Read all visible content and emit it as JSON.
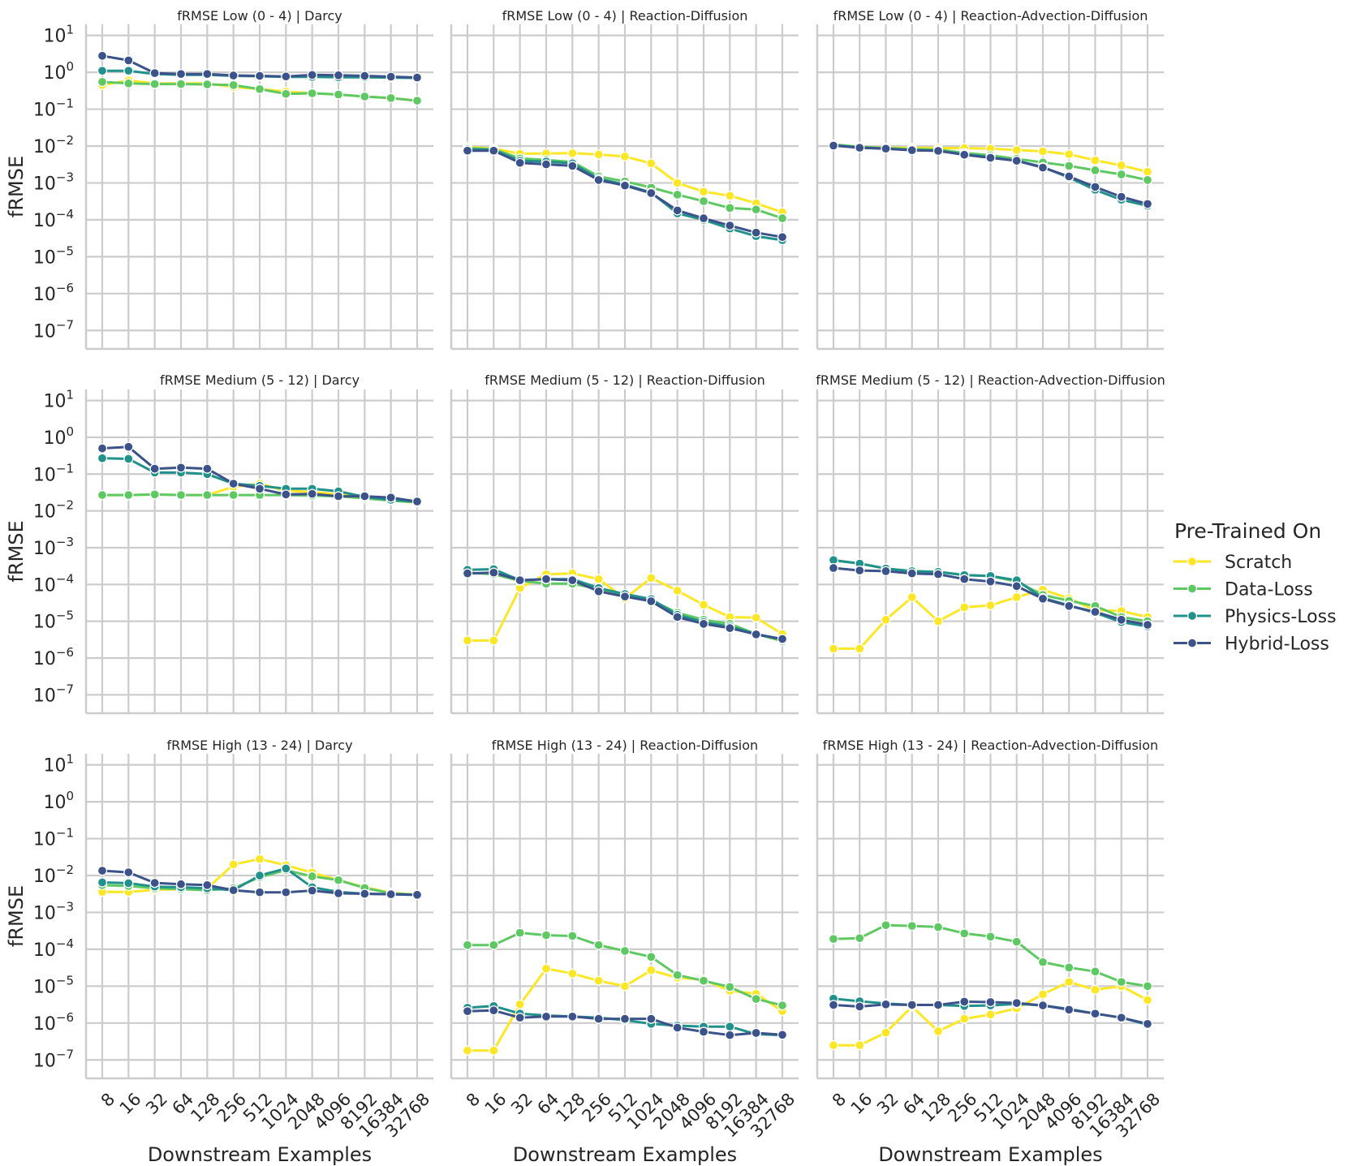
{
  "figure": {
    "legend": {
      "title": "Pre-Trained On",
      "entries": [
        "Scratch",
        "Data-Loss",
        "Physics-Loss",
        "Hybrid-Loss"
      ],
      "placement": "right-center"
    },
    "colors": {
      "Scratch": "#fde725",
      "Data-Loss": "#5ec962",
      "Physics-Loss": "#21918c",
      "Hybrid-Loss": "#3b528b"
    },
    "y_tick_labels": [
      {
        "base": "10",
        "exp": "1"
      },
      {
        "base": "10",
        "exp": "0"
      },
      {
        "base": "10",
        "exp": "−1"
      },
      {
        "base": "10",
        "exp": "−2"
      },
      {
        "base": "10",
        "exp": "−3"
      },
      {
        "base": "10",
        "exp": "−4"
      },
      {
        "base": "10",
        "exp": "−5"
      },
      {
        "base": "10",
        "exp": "−6"
      },
      {
        "base": "10",
        "exp": "−7"
      }
    ],
    "x_tick_labels": [
      "8",
      "16",
      "32",
      "64",
      "128",
      "256",
      "512",
      "1024",
      "2048",
      "4096",
      "8192",
      "16384",
      "32768"
    ],
    "xlabel": "Downstream Examples",
    "ylabel": "fRMSE"
  },
  "chart_data": [
    {
      "type": "line",
      "yscale": "log",
      "ylim": [
        3e-08,
        20
      ],
      "title": "fRMSE Low (0 - 4) | Darcy",
      "categories": [
        "8",
        "16",
        "32",
        "64",
        "128",
        "256",
        "512",
        "1024",
        "2048",
        "4096",
        "8192",
        "16384",
        "32768"
      ],
      "series": [
        {
          "name": "Scratch",
          "values": [
            0.45,
            0.6,
            0.5,
            0.5,
            0.5,
            0.4,
            0.35,
            0.3,
            0.27,
            0.25,
            0.22,
            0.2,
            0.17
          ]
        },
        {
          "name": "Data-Loss",
          "values": [
            0.55,
            0.5,
            0.48,
            0.48,
            0.47,
            0.45,
            0.35,
            0.26,
            0.27,
            0.25,
            0.22,
            0.2,
            0.17
          ]
        },
        {
          "name": "Physics-Loss",
          "values": [
            1.1,
            1.1,
            0.9,
            0.85,
            0.85,
            0.8,
            0.78,
            0.75,
            0.75,
            0.73,
            0.73,
            0.72,
            0.7
          ]
        },
        {
          "name": "Hybrid-Loss",
          "values": [
            2.8,
            2.1,
            0.95,
            0.9,
            0.9,
            0.82,
            0.8,
            0.77,
            0.85,
            0.83,
            0.8,
            0.76,
            0.72
          ]
        }
      ]
    },
    {
      "type": "line",
      "yscale": "log",
      "ylim": [
        3e-08,
        20
      ],
      "title": "fRMSE Low (0 - 4) | Reaction-Diffusion",
      "categories": [
        "8",
        "16",
        "32",
        "64",
        "128",
        "256",
        "512",
        "1024",
        "2048",
        "4096",
        "8192",
        "16384",
        "32768"
      ],
      "series": [
        {
          "name": "Scratch",
          "values": [
            0.0095,
            0.0085,
            0.0062,
            0.0063,
            0.0064,
            0.0059,
            0.0052,
            0.0034,
            0.001,
            0.00058,
            0.00045,
            0.00028,
            0.00016
          ]
        },
        {
          "name": "Data-Loss",
          "values": [
            0.0088,
            0.0083,
            0.0046,
            0.0042,
            0.0037,
            0.0015,
            0.0011,
            0.00075,
            0.00048,
            0.00032,
            0.00021,
            0.00019,
            0.00011
          ]
        },
        {
          "name": "Physics-Loss",
          "values": [
            0.0082,
            0.0078,
            0.004,
            0.0038,
            0.0034,
            0.0013,
            0.0009,
            0.00055,
            0.00015,
            0.0001,
            5.8e-05,
            3.6e-05,
            2.8e-05
          ]
        },
        {
          "name": "Hybrid-Loss",
          "values": [
            0.0075,
            0.0075,
            0.0035,
            0.0032,
            0.0029,
            0.0012,
            0.00085,
            0.00053,
            0.00018,
            0.00011,
            7e-05,
            4.5e-05,
            3.4e-05
          ]
        }
      ]
    },
    {
      "type": "line",
      "yscale": "log",
      "ylim": [
        3e-08,
        20
      ],
      "title": "fRMSE Low (0 - 4) | Reaction-Advection-Diffusion",
      "categories": [
        "8",
        "16",
        "32",
        "64",
        "128",
        "256",
        "512",
        "1024",
        "2048",
        "4096",
        "8192",
        "16384",
        "32768"
      ],
      "series": [
        {
          "name": "Scratch",
          "values": [
            0.011,
            0.0095,
            0.009,
            0.009,
            0.0088,
            0.0088,
            0.0085,
            0.0078,
            0.0072,
            0.006,
            0.0041,
            0.003,
            0.002
          ]
        },
        {
          "name": "Data-Loss",
          "values": [
            0.011,
            0.0095,
            0.0088,
            0.0083,
            0.008,
            0.0065,
            0.0056,
            0.0045,
            0.0036,
            0.0029,
            0.0022,
            0.0017,
            0.0012
          ]
        },
        {
          "name": "Physics-Loss",
          "values": [
            0.0105,
            0.0092,
            0.0085,
            0.0078,
            0.0075,
            0.006,
            0.005,
            0.004,
            0.0027,
            0.0014,
            0.00065,
            0.00035,
            0.00024
          ]
        },
        {
          "name": "Hybrid-Loss",
          "values": [
            0.0103,
            0.009,
            0.0085,
            0.0077,
            0.0074,
            0.0058,
            0.0048,
            0.004,
            0.0026,
            0.0015,
            0.00078,
            0.00042,
            0.00027
          ]
        }
      ]
    },
    {
      "type": "line",
      "yscale": "log",
      "ylim": [
        3e-08,
        20
      ],
      "title": "fRMSE Medium (5 - 12) | Darcy",
      "categories": [
        "8",
        "16",
        "32",
        "64",
        "128",
        "256",
        "512",
        "1024",
        "2048",
        "4096",
        "8192",
        "16384",
        "32768"
      ],
      "series": [
        {
          "name": "Scratch",
          "values": [
            0.027,
            0.027,
            0.028,
            0.027,
            0.027,
            0.045,
            0.055,
            0.035,
            0.033,
            0.028,
            0.025,
            0.022,
            0.018
          ]
        },
        {
          "name": "Data-Loss",
          "values": [
            0.027,
            0.027,
            0.028,
            0.027,
            0.027,
            0.027,
            0.027,
            0.027,
            0.026,
            0.025,
            0.022,
            0.019,
            0.017
          ]
        },
        {
          "name": "Physics-Loss",
          "values": [
            0.27,
            0.26,
            0.11,
            0.11,
            0.1,
            0.055,
            0.048,
            0.04,
            0.04,
            0.034,
            0.024,
            0.02,
            0.018
          ]
        },
        {
          "name": "Hybrid-Loss",
          "values": [
            0.5,
            0.55,
            0.14,
            0.15,
            0.14,
            0.055,
            0.04,
            0.028,
            0.029,
            0.025,
            0.025,
            0.023,
            0.018
          ]
        }
      ]
    },
    {
      "type": "line",
      "yscale": "log",
      "ylim": [
        3e-08,
        20
      ],
      "title": "fRMSE Medium (5 - 12) | Reaction-Diffusion",
      "categories": [
        "8",
        "16",
        "32",
        "64",
        "128",
        "256",
        "512",
        "1024",
        "2048",
        "4096",
        "8192",
        "16384",
        "32768"
      ],
      "series": [
        {
          "name": "Scratch",
          "values": [
            3e-06,
            3e-06,
            8e-05,
            0.00019,
            0.0002,
            0.00014,
            4.2e-05,
            0.00015,
            6.8e-05,
            2.8e-05,
            1.3e-05,
            1.25e-05,
            4.5e-06
          ]
        },
        {
          "name": "Data-Loss",
          "values": [
            0.00021,
            0.00019,
            0.000125,
            0.000105,
            0.000105,
            7.5e-05,
            5e-05,
            3.7e-05,
            1.7e-05,
            1.1e-05,
            8.5e-06,
            4.5e-06,
            2.9e-06
          ]
        },
        {
          "name": "Physics-Loss",
          "values": [
            0.00025,
            0.00026,
            0.00013,
            0.00014,
            0.00014,
            8e-05,
            5.5e-05,
            4e-05,
            1.5e-05,
            9.5e-06,
            7.2e-06,
            4.5e-06,
            3.2e-06
          ]
        },
        {
          "name": "Hybrid-Loss",
          "values": [
            0.0002,
            0.00021,
            0.00013,
            0.00014,
            0.00013,
            6.5e-05,
            4.7e-05,
            3.5e-05,
            1.3e-05,
            8.5e-06,
            6.5e-06,
            4.4e-06,
            3.3e-06
          ]
        }
      ]
    },
    {
      "type": "line",
      "yscale": "log",
      "ylim": [
        3e-08,
        20
      ],
      "title": "fRMSE Medium (5 - 12) | Reaction-Advection-Diffusion",
      "categories": [
        "8",
        "16",
        "32",
        "64",
        "128",
        "256",
        "512",
        "1024",
        "2048",
        "4096",
        "8192",
        "16384",
        "32768"
      ],
      "series": [
        {
          "name": "Scratch",
          "values": [
            1.8e-06,
            1.8e-06,
            1.1e-05,
            4.5e-05,
            1e-05,
            2.4e-05,
            2.7e-05,
            4.5e-05,
            7.2e-05,
            4.2e-05,
            2e-05,
            1.9e-05,
            1.3e-05
          ]
        },
        {
          "name": "Data-Loss",
          "values": [
            0.00045,
            0.00037,
            0.00027,
            0.00023,
            0.00022,
            0.00018,
            0.00017,
            0.00012,
            5.2e-05,
            3.6e-05,
            2.6e-05,
            1.3e-05,
            1e-05
          ]
        },
        {
          "name": "Physics-Loss",
          "values": [
            0.00046,
            0.00037,
            0.00027,
            0.00023,
            0.00022,
            0.00018,
            0.00017,
            0.00013,
            4.3e-05,
            2.7e-05,
            1.7e-05,
            9.5e-06,
            7.2e-06
          ]
        },
        {
          "name": "Hybrid-Loss",
          "values": [
            0.00028,
            0.00024,
            0.00023,
            0.0002,
            0.00019,
            0.00014,
            0.00012,
            9e-05,
            4.1e-05,
            2.6e-05,
            1.8e-05,
            1.1e-05,
            8e-06
          ]
        }
      ]
    },
    {
      "type": "line",
      "yscale": "log",
      "ylim": [
        3e-08,
        20
      ],
      "title": "fRMSE High (13 - 24) | Darcy",
      "categories": [
        "8",
        "16",
        "32",
        "64",
        "128",
        "256",
        "512",
        "1024",
        "2048",
        "4096",
        "8192",
        "16384",
        "32768"
      ],
      "series": [
        {
          "name": "Scratch",
          "values": [
            0.0036,
            0.0036,
            0.0041,
            0.0043,
            0.0045,
            0.02,
            0.028,
            0.019,
            0.012,
            0.0075,
            0.0048,
            0.0034,
            0.003
          ]
        },
        {
          "name": "Data-Loss",
          "values": [
            0.0055,
            0.0052,
            0.0045,
            0.0043,
            0.004,
            0.0045,
            0.009,
            0.014,
            0.0095,
            0.0075,
            0.0046,
            0.0033,
            0.003
          ]
        },
        {
          "name": "Physics-Loss",
          "values": [
            0.0065,
            0.0062,
            0.005,
            0.0048,
            0.0045,
            0.004,
            0.01,
            0.0155,
            0.0048,
            0.0036,
            0.0032,
            0.0031,
            0.003
          ]
        },
        {
          "name": "Hybrid-Loss",
          "values": [
            0.0135,
            0.0122,
            0.0063,
            0.0058,
            0.0055,
            0.004,
            0.0035,
            0.0035,
            0.0039,
            0.0033,
            0.0032,
            0.0031,
            0.003
          ]
        }
      ]
    },
    {
      "type": "line",
      "yscale": "log",
      "ylim": [
        3e-08,
        20
      ],
      "title": "fRMSE High (13 - 24) | Reaction-Diffusion",
      "categories": [
        "8",
        "16",
        "32",
        "64",
        "128",
        "256",
        "512",
        "1024",
        "2048",
        "4096",
        "8192",
        "16384",
        "32768"
      ],
      "series": [
        {
          "name": "Scratch",
          "values": [
            1.8e-07,
            1.8e-07,
            3.2e-06,
            3e-05,
            2.2e-05,
            1.4e-05,
            1e-05,
            2.7e-05,
            1.7e-05,
            1.5e-05,
            7.5e-06,
            6.2e-06,
            2.1e-06
          ]
        },
        {
          "name": "Data-Loss",
          "values": [
            0.00013,
            0.00013,
            0.00028,
            0.00024,
            0.00023,
            0.00013,
            9e-05,
            6.2e-05,
            2e-05,
            1.4e-05,
            9.5e-06,
            4.5e-06,
            3e-06
          ]
        },
        {
          "name": "Physics-Loss",
          "values": [
            2.6e-06,
            2.9e-06,
            1.8e-06,
            1.6e-06,
            1.5e-06,
            1.4e-06,
            1.2e-06,
            9.5e-07,
            8.5e-07,
            8e-07,
            8e-07,
            5e-07,
            4.7e-07
          ]
        },
        {
          "name": "Hybrid-Loss",
          "values": [
            2.1e-06,
            2.2e-06,
            1.4e-06,
            1.5e-06,
            1.5e-06,
            1.3e-06,
            1.3e-06,
            1.3e-06,
            7.5e-07,
            5.8e-07,
            4.7e-07,
            5.4e-07,
            4.8e-07
          ]
        }
      ]
    },
    {
      "type": "line",
      "yscale": "log",
      "ylim": [
        3e-08,
        20
      ],
      "title": "fRMSE High (13 - 24) | Reaction-Advection-Diffusion",
      "categories": [
        "8",
        "16",
        "32",
        "64",
        "128",
        "256",
        "512",
        "1024",
        "2048",
        "4096",
        "8192",
        "16384",
        "32768"
      ],
      "series": [
        {
          "name": "Scratch",
          "values": [
            2.5e-07,
            2.5e-07,
            5.5e-07,
            2.8e-06,
            6e-07,
            1.3e-06,
            1.7e-06,
            2.5e-06,
            6e-06,
            1.3e-05,
            8e-06,
            1e-05,
            4.2e-06
          ]
        },
        {
          "name": "Data-Loss",
          "values": [
            0.00019,
            0.0002,
            0.00045,
            0.00043,
            0.0004,
            0.00027,
            0.00022,
            0.00016,
            4.5e-05,
            3.2e-05,
            2.5e-05,
            1.3e-05,
            1e-05
          ]
        },
        {
          "name": "Physics-Loss",
          "values": [
            4.6e-06,
            3.9e-06,
            3.4e-06,
            3.1e-06,
            3.1e-06,
            2.9e-06,
            3e-06,
            3.3e-06,
            3e-06,
            2.4e-06,
            1.8e-06,
            1.4e-06,
            9e-07
          ]
        },
        {
          "name": "Hybrid-Loss",
          "values": [
            3.1e-06,
            2.8e-06,
            3.2e-06,
            3.1e-06,
            3.1e-06,
            3.8e-06,
            3.7e-06,
            3.5e-06,
            3e-06,
            2.3e-06,
            1.8e-06,
            1.4e-06,
            9.5e-07
          ]
        }
      ]
    }
  ]
}
